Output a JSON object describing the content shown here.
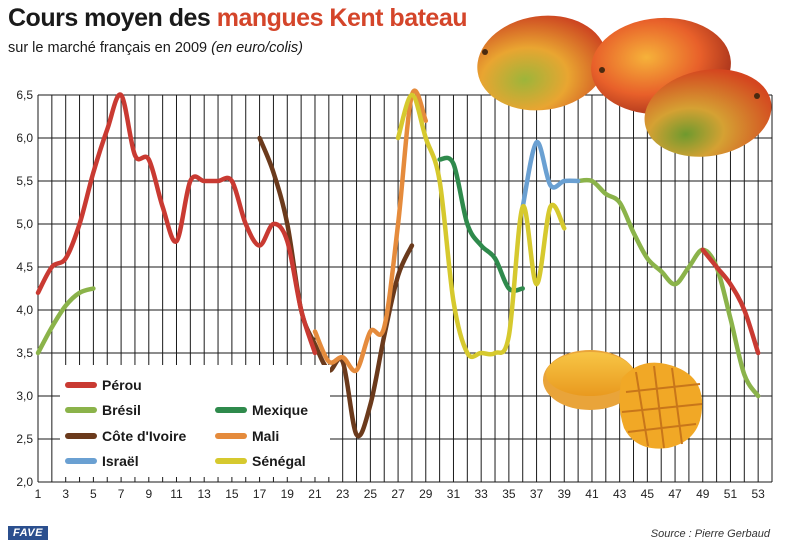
{
  "header": {
    "title_part1": "Cours moyen des ",
    "title_part2": "mangues Kent bateau",
    "subtitle_main": "sur le marché français en 2009 ",
    "subtitle_unit": "(en euro/colis)"
  },
  "footer": {
    "source": "Source : Pierre Gerbaud",
    "logo": "FAVE"
  },
  "colors": {
    "highlight": "#d4452a",
    "grid": "#1a1a1a"
  },
  "chart_data": {
    "type": "line",
    "title": "Cours moyen des mangues Kent bateau",
    "subtitle": "sur le marché français en 2009 (en euro/colis)",
    "xlabel": "",
    "ylabel": "",
    "xlim": [
      1,
      54
    ],
    "ylim": [
      2.0,
      6.5
    ],
    "x_ticks": [
      1,
      3,
      5,
      7,
      9,
      11,
      13,
      15,
      17,
      19,
      21,
      23,
      25,
      27,
      29,
      31,
      33,
      35,
      37,
      39,
      41,
      43,
      45,
      47,
      49,
      51,
      53
    ],
    "y_ticks": [
      "2,0",
      "2,5",
      "3,0",
      "3,5",
      "4,0",
      "4,5",
      "5,0",
      "5,5",
      "6,0",
      "6,5"
    ],
    "y_tick_values": [
      2.0,
      2.5,
      3.0,
      3.5,
      4.0,
      4.5,
      5.0,
      5.5,
      6.0,
      6.5
    ],
    "grid": true,
    "legend_position": "bottom-left",
    "series": [
      {
        "name": "Pérou",
        "color": "#c93a32",
        "points": [
          [
            1,
            4.2
          ],
          [
            2,
            4.5
          ],
          [
            3,
            4.6
          ],
          [
            4,
            5.0
          ],
          [
            5,
            5.6
          ],
          [
            6,
            6.1
          ],
          [
            7,
            6.5
          ],
          [
            8,
            5.8
          ],
          [
            9,
            5.75
          ],
          [
            10,
            5.2
          ],
          [
            11,
            4.8
          ],
          [
            12,
            5.5
          ],
          [
            13,
            5.5
          ],
          [
            14,
            5.5
          ],
          [
            15,
            5.5
          ],
          [
            16,
            5.0
          ],
          [
            17,
            4.75
          ],
          [
            18,
            5.0
          ],
          [
            19,
            4.8
          ],
          [
            20,
            4.0
          ],
          [
            21,
            3.5
          ]
        ]
      },
      {
        "name": "Pérou",
        "color": "#c93a32",
        "points": [
          [
            49,
            4.7
          ],
          [
            50,
            4.5
          ],
          [
            51,
            4.3
          ],
          [
            52,
            4.0
          ],
          [
            53,
            3.5
          ]
        ]
      },
      {
        "name": "Brésil",
        "color": "#8bb34a",
        "points": [
          [
            1,
            3.5
          ],
          [
            2,
            3.8
          ],
          [
            3,
            4.05
          ],
          [
            4,
            4.2
          ],
          [
            5,
            4.25
          ]
        ]
      },
      {
        "name": "Brésil",
        "color": "#8bb34a",
        "points": [
          [
            40,
            5.5
          ],
          [
            41,
            5.5
          ],
          [
            42,
            5.35
          ],
          [
            43,
            5.25
          ],
          [
            44,
            4.9
          ],
          [
            45,
            4.6
          ],
          [
            46,
            4.45
          ],
          [
            47,
            4.3
          ],
          [
            48,
            4.5
          ],
          [
            49,
            4.7
          ],
          [
            50,
            4.5
          ],
          [
            51,
            3.9
          ],
          [
            52,
            3.25
          ],
          [
            53,
            3.0
          ]
        ]
      },
      {
        "name": "Côte d'Ivoire",
        "color": "#6b3a1c",
        "points": [
          [
            17,
            6.0
          ],
          [
            18,
            5.6
          ],
          [
            19,
            5.0
          ],
          [
            20,
            4.0
          ],
          [
            21,
            3.6
          ],
          [
            22,
            3.3
          ],
          [
            23,
            3.4
          ],
          [
            24,
            2.55
          ],
          [
            25,
            2.9
          ],
          [
            26,
            3.7
          ],
          [
            27,
            4.4
          ],
          [
            28,
            4.75
          ]
        ]
      },
      {
        "name": "Mexique",
        "color": "#2f8a4c",
        "points": [
          [
            30,
            5.75
          ],
          [
            31,
            5.7
          ],
          [
            32,
            5.0
          ],
          [
            33,
            4.75
          ],
          [
            34,
            4.6
          ],
          [
            35,
            4.25
          ],
          [
            36,
            4.25
          ]
        ]
      },
      {
        "name": "Mali",
        "color": "#e58b3c",
        "points": [
          [
            21,
            3.75
          ],
          [
            22,
            3.4
          ],
          [
            23,
            3.45
          ],
          [
            24,
            3.3
          ],
          [
            25,
            3.75
          ],
          [
            26,
            3.8
          ],
          [
            27,
            5.0
          ],
          [
            28,
            6.5
          ],
          [
            29,
            6.2
          ]
        ]
      },
      {
        "name": "Israël",
        "color": "#6aa0d2",
        "points": [
          [
            36,
            5.2
          ],
          [
            37,
            5.95
          ],
          [
            38,
            5.45
          ],
          [
            39,
            5.5
          ],
          [
            40,
            5.5
          ]
        ]
      },
      {
        "name": "Sénégal",
        "color": "#d6c92e",
        "points": [
          [
            27,
            6.0
          ],
          [
            28,
            6.5
          ],
          [
            29,
            6.0
          ],
          [
            30,
            5.5
          ],
          [
            31,
            4.1
          ],
          [
            32,
            3.5
          ],
          [
            33,
            3.5
          ],
          [
            34,
            3.5
          ],
          [
            35,
            3.7
          ],
          [
            36,
            5.2
          ],
          [
            37,
            4.3
          ],
          [
            38,
            5.2
          ],
          [
            39,
            4.95
          ]
        ]
      }
    ],
    "legend": [
      {
        "label": "Pérou",
        "color": "#c93a32"
      },
      {
        "label": "Brésil",
        "color": "#8bb34a"
      },
      {
        "label": "Côte d'Ivoire",
        "color": "#6b3a1c"
      },
      {
        "label": "Israël",
        "color": "#6aa0d2"
      },
      {
        "label": "Mexique",
        "color": "#2f8a4c"
      },
      {
        "label": "Mali",
        "color": "#e58b3c"
      },
      {
        "label": "Sénégal",
        "color": "#d6c92e"
      }
    ]
  }
}
